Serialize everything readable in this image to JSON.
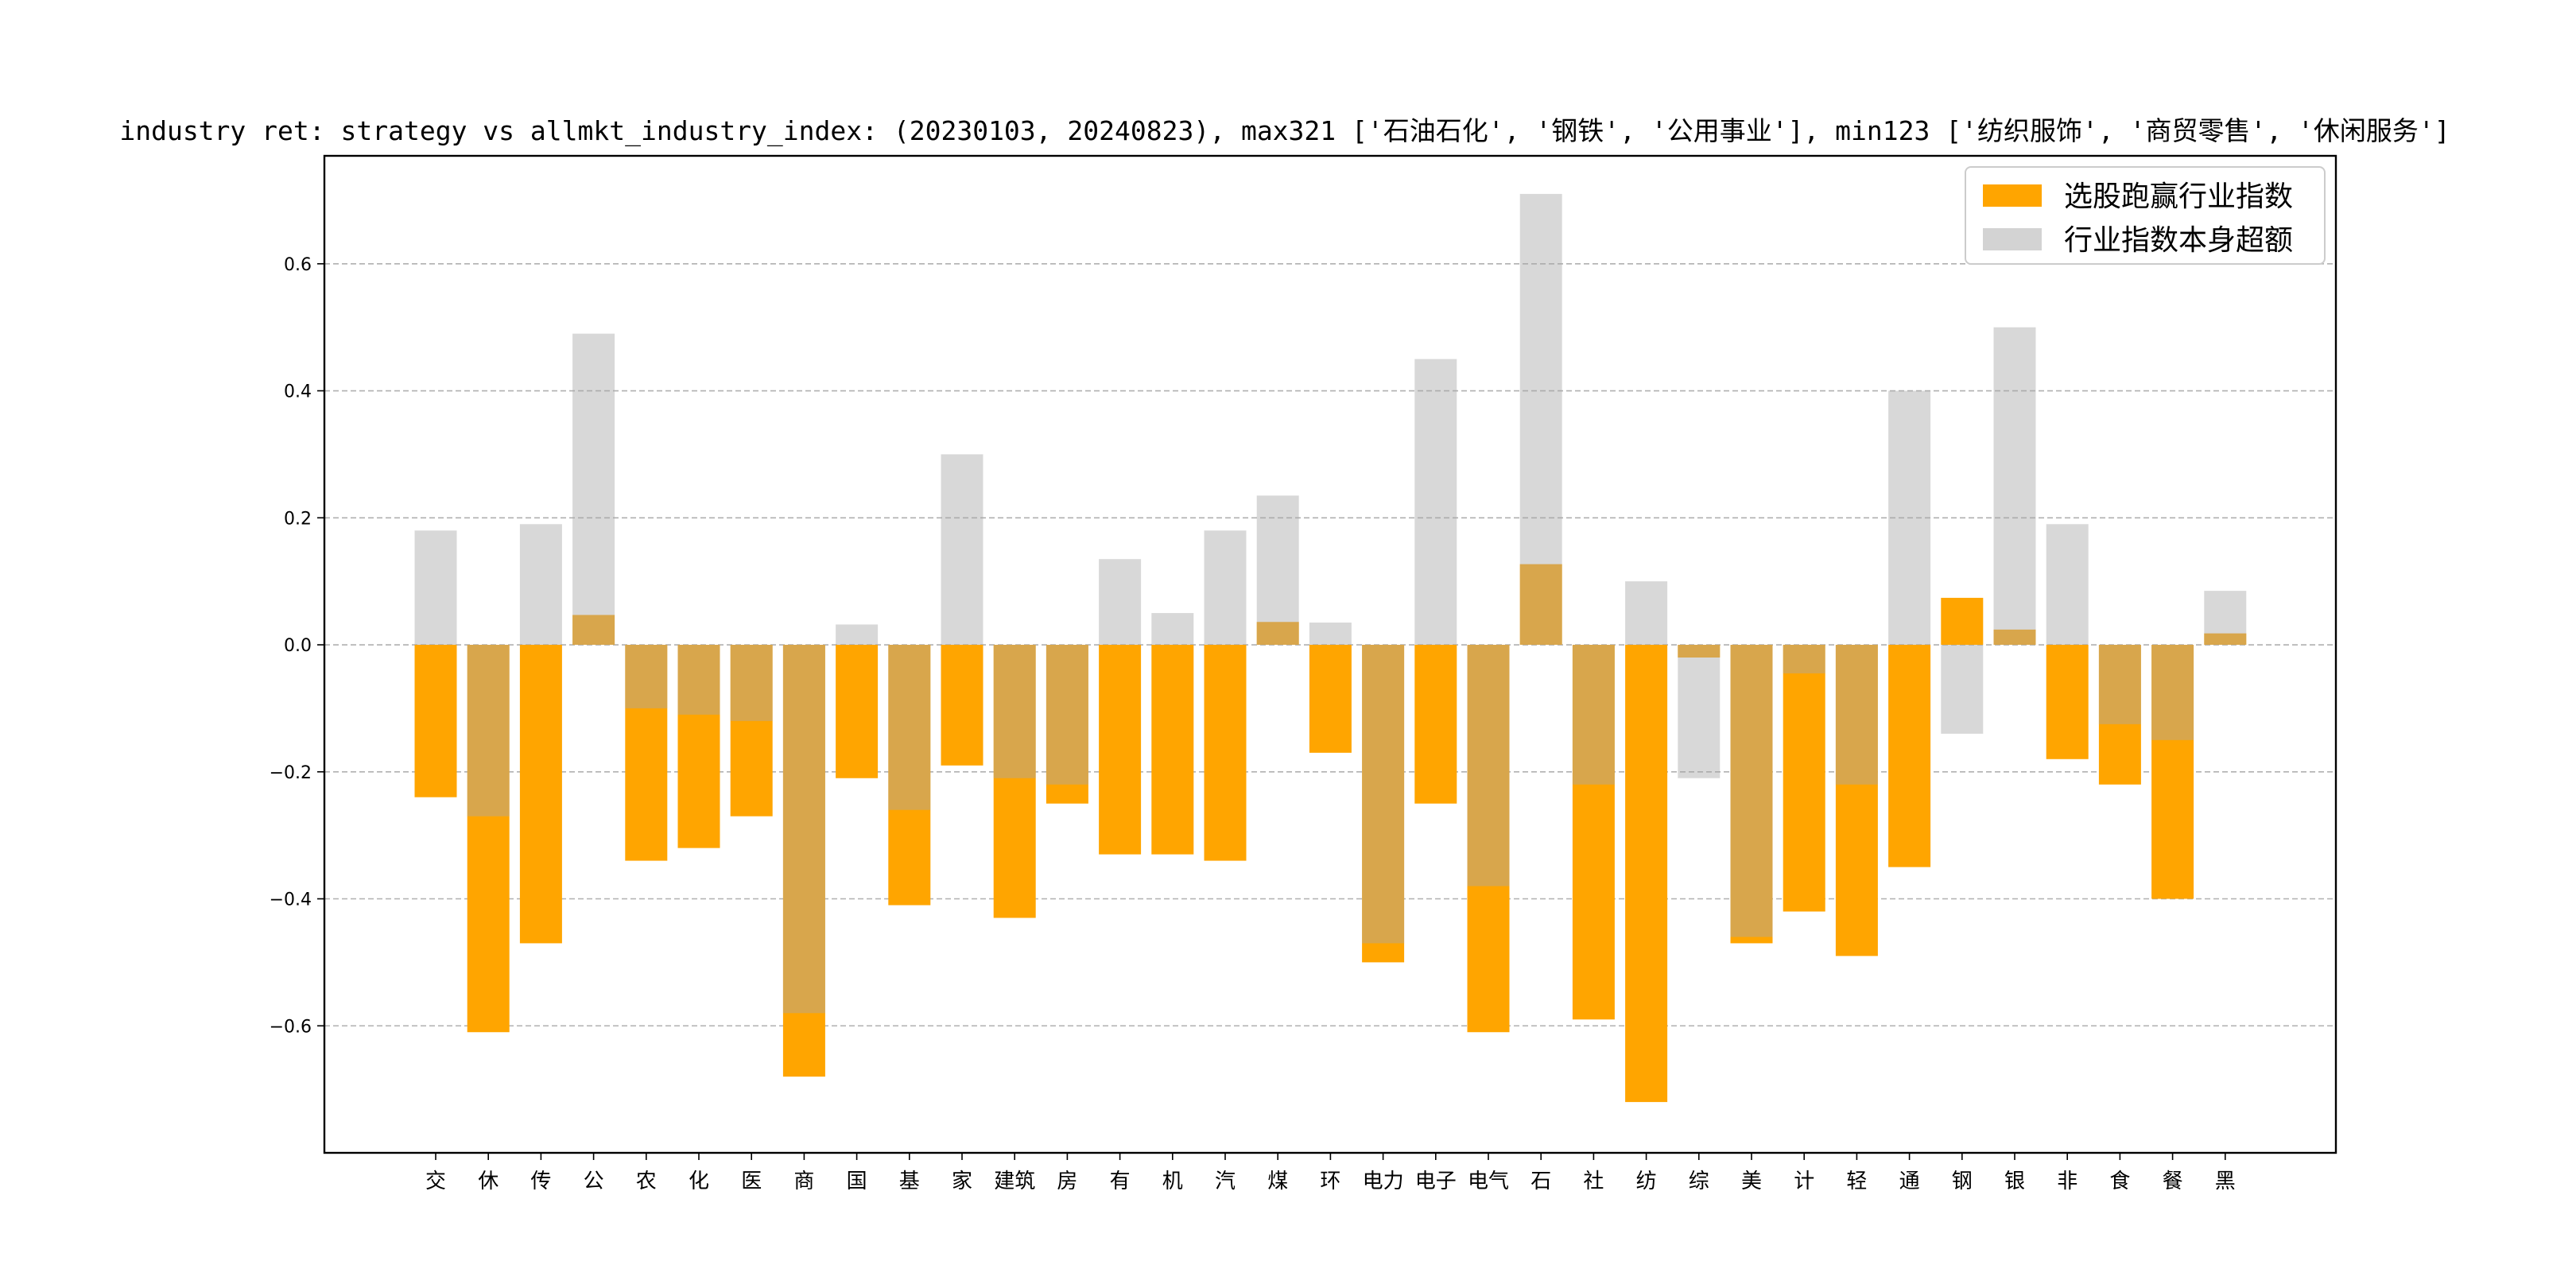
{
  "chart_data": {
    "type": "bar",
    "title": "industry ret: strategy vs allmkt_industry_index: (20230103, 20240823), max321 ['石油石化', '钢铁', '公用事业'], min123 ['纺织服饰', '商贸零售', '休闲服务']",
    "xlabel": "",
    "ylabel": "",
    "ylim": [
      -0.8,
      0.77
    ],
    "yticks": [
      -0.6,
      -0.4,
      -0.2,
      0.0,
      0.2,
      0.4,
      0.6
    ],
    "ytick_labels": [
      "−0.6",
      "−0.4",
      "−0.2",
      "0.0",
      "0.2",
      "0.4",
      "0.6"
    ],
    "grid": "horizontal dashed",
    "legend_position": "top-right",
    "categories": [
      "交",
      "休",
      "传",
      "公",
      "农",
      "化",
      "医",
      "商",
      "国",
      "基",
      "家",
      "建筑",
      "房",
      "有",
      "机",
      "汽",
      "煤",
      "环",
      "电力",
      "电子",
      "电气",
      "石",
      "社",
      "纺",
      "综",
      "美",
      "计",
      "轻",
      "通",
      "钢",
      "银",
      "非",
      "食",
      "餐",
      "黑"
    ],
    "series": [
      {
        "name": "选股跑赢行业指数",
        "color": "#ffa500",
        "values": [
          -0.24,
          -0.61,
          -0.47,
          0.047,
          -0.34,
          -0.32,
          -0.27,
          -0.68,
          -0.21,
          -0.41,
          -0.19,
          -0.43,
          -0.25,
          -0.33,
          -0.33,
          -0.34,
          0.036,
          -0.17,
          -0.5,
          -0.25,
          -0.61,
          0.127,
          -0.59,
          -0.72,
          -0.02,
          -0.47,
          -0.42,
          -0.49,
          -0.35,
          0.074,
          0.024,
          -0.18,
          -0.22,
          -0.4,
          0.018
        ]
      },
      {
        "name": "行业指数本身超额",
        "color": "#d3d3d3",
        "values": [
          0.18,
          -0.27,
          0.19,
          0.49,
          -0.1,
          -0.11,
          -0.12,
          -0.58,
          0.032,
          -0.26,
          0.3,
          -0.21,
          -0.22,
          0.135,
          0.05,
          0.18,
          0.235,
          0.035,
          -0.47,
          0.45,
          -0.38,
          0.71,
          -0.22,
          0.1,
          -0.21,
          -0.46,
          -0.045,
          -0.22,
          0.4,
          -0.14,
          0.5,
          0.19,
          -0.125,
          -0.15,
          0.085
        ]
      }
    ]
  }
}
